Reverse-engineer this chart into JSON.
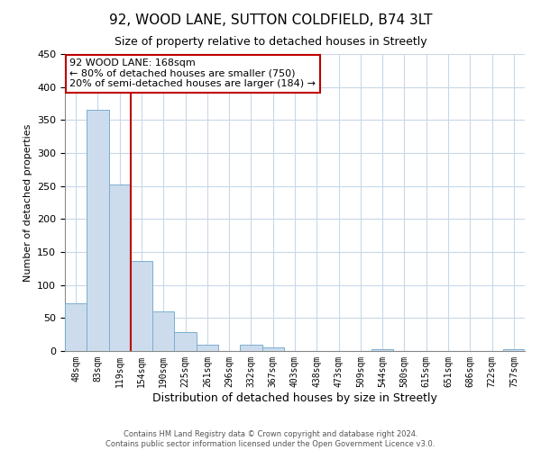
{
  "title": "92, WOOD LANE, SUTTON COLDFIELD, B74 3LT",
  "subtitle": "Size of property relative to detached houses in Streetly",
  "xlabel": "Distribution of detached houses by size in Streetly",
  "ylabel": "Number of detached properties",
  "bin_labels": [
    "48sqm",
    "83sqm",
    "119sqm",
    "154sqm",
    "190sqm",
    "225sqm",
    "261sqm",
    "296sqm",
    "332sqm",
    "367sqm",
    "403sqm",
    "438sqm",
    "473sqm",
    "509sqm",
    "544sqm",
    "580sqm",
    "615sqm",
    "651sqm",
    "686sqm",
    "722sqm",
    "757sqm"
  ],
  "bar_heights": [
    72,
    365,
    252,
    137,
    60,
    29,
    10,
    0,
    10,
    5,
    0,
    0,
    0,
    0,
    3,
    0,
    0,
    0,
    0,
    0,
    3
  ],
  "bar_color": "#ccdcec",
  "bar_edge_color": "#7aaed0",
  "vline_color": "#c00000",
  "annotation_text": "92 WOOD LANE: 168sqm\n← 80% of detached houses are smaller (750)\n20% of semi-detached houses are larger (184) →",
  "annotation_box_color": "#c00000",
  "ylim": [
    0,
    450
  ],
  "yticks": [
    0,
    50,
    100,
    150,
    200,
    250,
    300,
    350,
    400,
    450
  ],
  "footer": "Contains HM Land Registry data © Crown copyright and database right 2024.\nContains public sector information licensed under the Open Government Licence v3.0.",
  "bg_color": "#ffffff",
  "grid_color": "#c8d8e8"
}
